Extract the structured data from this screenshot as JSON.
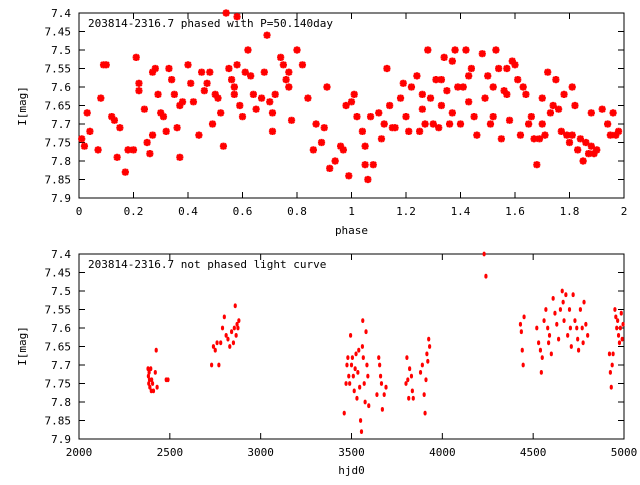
{
  "chart_data": [
    {
      "type": "scatter",
      "title": "203814-2316.7 phased with P=50.140day",
      "xlabel": "phase",
      "ylabel": "I[mag]",
      "xlim": [
        0,
        2
      ],
      "ylim": [
        7.9,
        7.4
      ],
      "y_inverted": true,
      "grid": false,
      "marker_color": "#ff0000",
      "x_ticks": [
        "0",
        "0.2",
        "0.4",
        "0.6",
        "0.8",
        "1",
        "1.2",
        "1.4",
        "1.6",
        "1.8",
        "2"
      ],
      "y_ticks": [
        "7.4",
        "7.45",
        "7.5",
        "7.55",
        "7.6",
        "7.65",
        "7.7",
        "7.75",
        "7.8",
        "7.85",
        "7.9"
      ],
      "points": [
        [
          0.01,
          7.74
        ],
        [
          0.02,
          7.76
        ],
        [
          0.03,
          7.67
        ],
        [
          0.04,
          7.72
        ],
        [
          0.07,
          7.77
        ],
        [
          0.08,
          7.63
        ],
        [
          0.09,
          7.54
        ],
        [
          0.1,
          7.54
        ],
        [
          0.12,
          7.68
        ],
        [
          0.13,
          7.69
        ],
        [
          0.14,
          7.79
        ],
        [
          0.17,
          7.83
        ],
        [
          0.18,
          7.77
        ],
        [
          0.2,
          7.77
        ],
        [
          0.21,
          7.52
        ],
        [
          0.22,
          7.59
        ],
        [
          0.22,
          7.61
        ],
        [
          0.24,
          7.66
        ],
        [
          0.25,
          7.75
        ],
        [
          0.26,
          7.78
        ],
        [
          0.27,
          7.56
        ],
        [
          0.28,
          7.55
        ],
        [
          0.29,
          7.62
        ],
        [
          0.3,
          7.67
        ],
        [
          0.31,
          7.68
        ],
        [
          0.32,
          7.72
        ],
        [
          0.33,
          7.55
        ],
        [
          0.34,
          7.58
        ],
        [
          0.35,
          7.62
        ],
        [
          0.36,
          7.71
        ],
        [
          0.37,
          7.79
        ],
        [
          0.38,
          7.64
        ],
        [
          0.4,
          7.54
        ],
        [
          0.41,
          7.59
        ],
        [
          0.42,
          7.64
        ],
        [
          0.44,
          7.73
        ],
        [
          0.45,
          7.56
        ],
        [
          0.46,
          7.61
        ],
        [
          0.48,
          7.56
        ],
        [
          0.49,
          7.7
        ],
        [
          0.5,
          7.62
        ],
        [
          0.51,
          7.63
        ],
        [
          0.52,
          7.67
        ],
        [
          0.53,
          7.76
        ],
        [
          0.54,
          7.4
        ],
        [
          0.55,
          7.55
        ],
        [
          0.56,
          7.58
        ],
        [
          0.57,
          7.6
        ],
        [
          0.58,
          7.41
        ],
        [
          0.58,
          7.54
        ],
        [
          0.59,
          7.65
        ],
        [
          0.6,
          7.68
        ],
        [
          0.61,
          7.56
        ],
        [
          0.62,
          7.5
        ],
        [
          0.63,
          7.57
        ],
        [
          0.65,
          7.66
        ],
        [
          0.67,
          7.63
        ],
        [
          0.68,
          7.56
        ],
        [
          0.69,
          7.46
        ],
        [
          0.7,
          7.64
        ],
        [
          0.71,
          7.67
        ],
        [
          0.72,
          7.62
        ],
        [
          0.74,
          7.52
        ],
        [
          0.75,
          7.54
        ],
        [
          0.76,
          7.58
        ],
        [
          0.77,
          7.6
        ],
        [
          0.78,
          7.69
        ],
        [
          0.8,
          7.5
        ],
        [
          0.82,
          7.54
        ],
        [
          0.84,
          7.63
        ],
        [
          0.86,
          7.77
        ],
        [
          0.87,
          7.7
        ],
        [
          0.89,
          7.75
        ],
        [
          0.9,
          7.71
        ],
        [
          0.91,
          7.6
        ],
        [
          0.92,
          7.82
        ],
        [
          0.94,
          7.8
        ],
        [
          0.96,
          7.76
        ],
        [
          0.97,
          7.77
        ],
        [
          0.98,
          7.65
        ],
        [
          0.99,
          7.84
        ],
        [
          1.0,
          7.64
        ],
        [
          1.01,
          7.62
        ],
        [
          1.02,
          7.68
        ],
        [
          1.04,
          7.72
        ],
        [
          1.05,
          7.76
        ],
        [
          1.06,
          7.85
        ],
        [
          1.07,
          7.68
        ],
        [
          1.08,
          7.81
        ],
        [
          1.1,
          7.67
        ],
        [
          1.12,
          7.7
        ],
        [
          1.13,
          7.55
        ],
        [
          1.14,
          7.65
        ],
        [
          1.16,
          7.71
        ],
        [
          1.18,
          7.63
        ],
        [
          1.2,
          7.68
        ],
        [
          1.21,
          7.72
        ],
        [
          1.22,
          7.6
        ],
        [
          1.24,
          7.57
        ],
        [
          1.25,
          7.72
        ],
        [
          1.26,
          7.62
        ],
        [
          1.27,
          7.7
        ],
        [
          1.28,
          7.5
        ],
        [
          1.29,
          7.63
        ],
        [
          1.3,
          7.7
        ],
        [
          1.31,
          7.58
        ],
        [
          1.32,
          7.71
        ],
        [
          1.33,
          7.65
        ],
        [
          1.34,
          7.52
        ],
        [
          1.35,
          7.61
        ],
        [
          1.36,
          7.7
        ],
        [
          1.37,
          7.67
        ],
        [
          1.38,
          7.5
        ],
        [
          1.39,
          7.6
        ],
        [
          1.4,
          7.7
        ],
        [
          1.41,
          7.6
        ],
        [
          1.42,
          7.5
        ],
        [
          1.43,
          7.64
        ],
        [
          1.44,
          7.55
        ],
        [
          1.45,
          7.68
        ],
        [
          1.46,
          7.73
        ],
        [
          1.48,
          7.51
        ],
        [
          1.49,
          7.63
        ],
        [
          1.5,
          7.57
        ],
        [
          1.51,
          7.7
        ],
        [
          1.52,
          7.68
        ],
        [
          1.53,
          7.5
        ],
        [
          1.54,
          7.55
        ],
        [
          1.55,
          7.74
        ],
        [
          1.56,
          7.61
        ],
        [
          1.57,
          7.62
        ],
        [
          1.58,
          7.69
        ],
        [
          1.59,
          7.53
        ],
        [
          1.6,
          7.54
        ],
        [
          1.61,
          7.58
        ],
        [
          1.62,
          7.73
        ],
        [
          1.64,
          7.62
        ],
        [
          1.65,
          7.7
        ],
        [
          1.66,
          7.68
        ],
        [
          1.67,
          7.74
        ],
        [
          1.68,
          7.81
        ],
        [
          1.69,
          7.74
        ],
        [
          1.7,
          7.63
        ],
        [
          1.71,
          7.73
        ],
        [
          1.72,
          7.56
        ],
        [
          1.73,
          7.67
        ],
        [
          1.74,
          7.65
        ],
        [
          1.76,
          7.66
        ],
        [
          1.77,
          7.72
        ],
        [
          1.78,
          7.62
        ],
        [
          1.79,
          7.73
        ],
        [
          1.8,
          7.75
        ],
        [
          1.81,
          7.73
        ],
        [
          1.82,
          7.65
        ],
        [
          1.83,
          7.77
        ],
        [
          1.84,
          7.74
        ],
        [
          1.85,
          7.8
        ],
        [
          1.86,
          7.75
        ],
        [
          1.87,
          7.78
        ],
        [
          1.88,
          7.76
        ],
        [
          1.89,
          7.78
        ],
        [
          1.9,
          7.77
        ],
        [
          1.92,
          7.66
        ],
        [
          1.94,
          7.7
        ],
        [
          1.95,
          7.73
        ],
        [
          1.96,
          7.67
        ],
        [
          1.98,
          7.72
        ],
        [
          0.15,
          7.71
        ],
        [
          0.27,
          7.73
        ],
        [
          0.37,
          7.65
        ],
        [
          0.47,
          7.59
        ],
        [
          0.57,
          7.62
        ],
        [
          0.64,
          7.62
        ],
        [
          0.71,
          7.72
        ],
        [
          0.77,
          7.56
        ],
        [
          1.05,
          7.81
        ],
        [
          1.11,
          7.74
        ],
        [
          1.15,
          7.71
        ],
        [
          1.19,
          7.59
        ],
        [
          1.26,
          7.66
        ],
        [
          1.33,
          7.58
        ],
        [
          1.37,
          7.53
        ],
        [
          1.43,
          7.57
        ],
        [
          1.52,
          7.6
        ],
        [
          1.57,
          7.55
        ],
        [
          1.63,
          7.6
        ],
        [
          1.7,
          7.7
        ],
        [
          1.75,
          7.58
        ],
        [
          1.81,
          7.6
        ],
        [
          1.88,
          7.67
        ],
        [
          1.97,
          7.73
        ]
      ]
    },
    {
      "type": "scatter",
      "title": "203814-2316.7 not phased light curve",
      "xlabel": "hjd0",
      "ylabel": "I[mag]",
      "xlim": [
        2000,
        5000
      ],
      "ylim": [
        7.9,
        7.4
      ],
      "y_inverted": true,
      "grid": false,
      "marker_color": "#ff0000",
      "x_ticks": [
        "2000",
        "2500",
        "3000",
        "3500",
        "4000",
        "4500",
        "5000"
      ],
      "y_ticks": [
        "7.4",
        "7.45",
        "7.5",
        "7.55",
        "7.6",
        "7.65",
        "7.7",
        "7.75",
        "7.8",
        "7.85",
        "7.9"
      ],
      "points": [
        [
          2380,
          7.71
        ],
        [
          2382,
          7.73
        ],
        [
          2384,
          7.75
        ],
        [
          2386,
          7.72
        ],
        [
          2388,
          7.74
        ],
        [
          2390,
          7.76
        ],
        [
          2395,
          7.71
        ],
        [
          2398,
          7.77
        ],
        [
          2400,
          7.74
        ],
        [
          2405,
          7.75
        ],
        [
          2410,
          7.77
        ],
        [
          2420,
          7.72
        ],
        [
          2425,
          7.66
        ],
        [
          2430,
          7.76
        ],
        [
          2480,
          7.74
        ],
        [
          2490,
          7.74
        ],
        [
          2730,
          7.7
        ],
        [
          2740,
          7.65
        ],
        [
          2750,
          7.66
        ],
        [
          2760,
          7.64
        ],
        [
          2770,
          7.7
        ],
        [
          2780,
          7.64
        ],
        [
          2790,
          7.6
        ],
        [
          2800,
          7.57
        ],
        [
          2810,
          7.62
        ],
        [
          2820,
          7.63
        ],
        [
          2830,
          7.65
        ],
        [
          2840,
          7.61
        ],
        [
          2850,
          7.64
        ],
        [
          2855,
          7.6
        ],
        [
          2860,
          7.54
        ],
        [
          2865,
          7.62
        ],
        [
          2870,
          7.59
        ],
        [
          2875,
          7.6
        ],
        [
          2880,
          7.58
        ],
        [
          3460,
          7.83
        ],
        [
          3470,
          7.75
        ],
        [
          3475,
          7.7
        ],
        [
          3480,
          7.68
        ],
        [
          3485,
          7.73
        ],
        [
          3490,
          7.75
        ],
        [
          3495,
          7.62
        ],
        [
          3500,
          7.7
        ],
        [
          3505,
          7.68
        ],
        [
          3510,
          7.73
        ],
        [
          3515,
          7.77
        ],
        [
          3520,
          7.71
        ],
        [
          3525,
          7.67
        ],
        [
          3530,
          7.79
        ],
        [
          3535,
          7.72
        ],
        [
          3540,
          7.66
        ],
        [
          3545,
          7.76
        ],
        [
          3550,
          7.85
        ],
        [
          3555,
          7.88
        ],
        [
          3560,
          7.65
        ],
        [
          3562,
          7.58
        ],
        [
          3565,
          7.68
        ],
        [
          3570,
          7.75
        ],
        [
          3575,
          7.8
        ],
        [
          3580,
          7.61
        ],
        [
          3585,
          7.7
        ],
        [
          3590,
          7.73
        ],
        [
          3595,
          7.81
        ],
        [
          3640,
          7.78
        ],
        [
          3650,
          7.68
        ],
        [
          3655,
          7.7
        ],
        [
          3660,
          7.73
        ],
        [
          3665,
          7.75
        ],
        [
          3670,
          7.82
        ],
        [
          3680,
          7.78
        ],
        [
          3690,
          7.76
        ],
        [
          3800,
          7.75
        ],
        [
          3805,
          7.68
        ],
        [
          3810,
          7.74
        ],
        [
          3815,
          7.79
        ],
        [
          3820,
          7.71
        ],
        [
          3830,
          7.73
        ],
        [
          3835,
          7.77
        ],
        [
          3840,
          7.79
        ],
        [
          3880,
          7.72
        ],
        [
          3890,
          7.7
        ],
        [
          3900,
          7.78
        ],
        [
          3905,
          7.83
        ],
        [
          3910,
          7.74
        ],
        [
          3915,
          7.67
        ],
        [
          3920,
          7.69
        ],
        [
          3925,
          7.63
        ],
        [
          3930,
          7.65
        ],
        [
          4230,
          7.4
        ],
        [
          4240,
          7.46
        ],
        [
          4430,
          7.59
        ],
        [
          4435,
          7.61
        ],
        [
          4440,
          7.66
        ],
        [
          4445,
          7.7
        ],
        [
          4450,
          7.57
        ],
        [
          4520,
          7.6
        ],
        [
          4530,
          7.64
        ],
        [
          4540,
          7.66
        ],
        [
          4545,
          7.72
        ],
        [
          4550,
          7.68
        ],
        [
          4560,
          7.58
        ],
        [
          4570,
          7.55
        ],
        [
          4580,
          7.6
        ],
        [
          4585,
          7.64
        ],
        [
          4590,
          7.62
        ],
        [
          4600,
          7.67
        ],
        [
          4610,
          7.52
        ],
        [
          4620,
          7.56
        ],
        [
          4630,
          7.59
        ],
        [
          4640,
          7.63
        ],
        [
          4650,
          7.55
        ],
        [
          4660,
          7.5
        ],
        [
          4665,
          7.53
        ],
        [
          4670,
          7.58
        ],
        [
          4680,
          7.51
        ],
        [
          4690,
          7.62
        ],
        [
          4700,
          7.55
        ],
        [
          4705,
          7.6
        ],
        [
          4710,
          7.65
        ],
        [
          4720,
          7.51
        ],
        [
          4730,
          7.58
        ],
        [
          4740,
          7.6
        ],
        [
          4745,
          7.63
        ],
        [
          4750,
          7.66
        ],
        [
          4760,
          7.55
        ],
        [
          4770,
          7.6
        ],
        [
          4775,
          7.64
        ],
        [
          4780,
          7.53
        ],
        [
          4790,
          7.59
        ],
        [
          4800,
          7.62
        ],
        [
          4920,
          7.67
        ],
        [
          4925,
          7.72
        ],
        [
          4930,
          7.76
        ],
        [
          4935,
          7.7
        ],
        [
          4940,
          7.67
        ],
        [
          4950,
          7.55
        ],
        [
          4955,
          7.57
        ],
        [
          4960,
          7.6
        ],
        [
          4965,
          7.58
        ],
        [
          4970,
          7.62
        ],
        [
          4975,
          7.64
        ],
        [
          4980,
          7.6
        ],
        [
          4985,
          7.56
        ],
        [
          4990,
          7.63
        ],
        [
          4995,
          7.59
        ]
      ]
    }
  ]
}
